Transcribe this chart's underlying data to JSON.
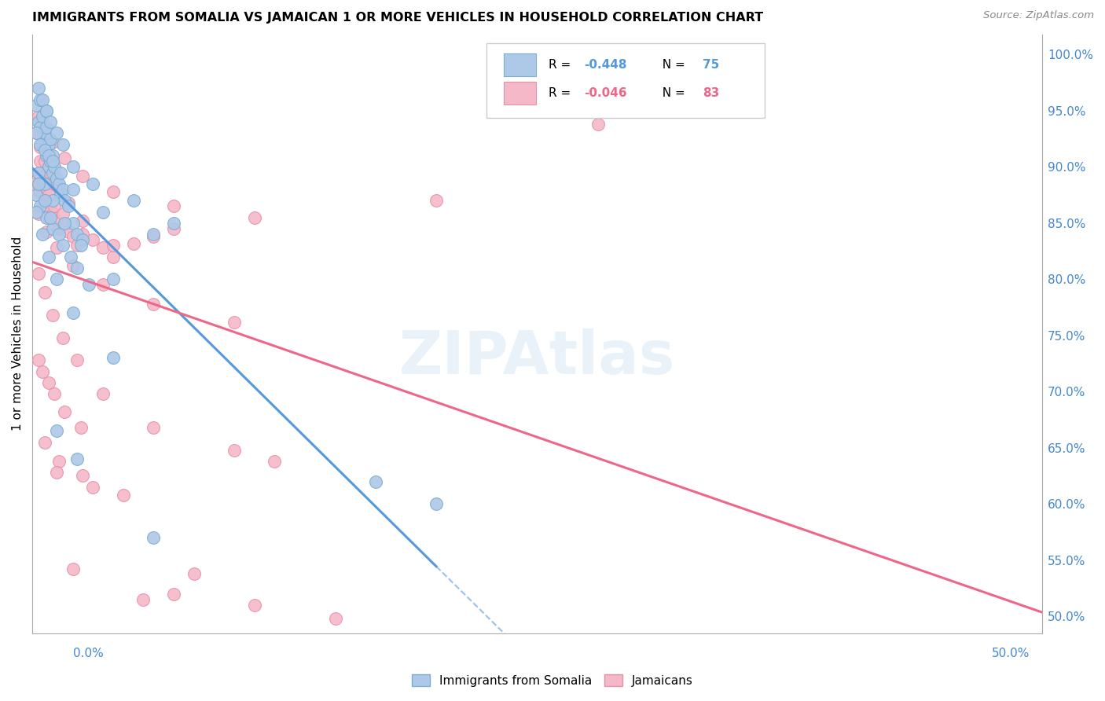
{
  "title": "IMMIGRANTS FROM SOMALIA VS JAMAICAN 1 OR MORE VEHICLES IN HOUSEHOLD CORRELATION CHART",
  "source": "Source: ZipAtlas.com",
  "ylabel": "1 or more Vehicles in Household",
  "ytick_labels": [
    "50.0%",
    "55.0%",
    "60.0%",
    "65.0%",
    "70.0%",
    "75.0%",
    "80.0%",
    "85.0%",
    "90.0%",
    "95.0%",
    "100.0%"
  ],
  "ytick_values": [
    0.5,
    0.55,
    0.6,
    0.65,
    0.7,
    0.75,
    0.8,
    0.85,
    0.9,
    0.95,
    1.0
  ],
  "xmin": 0.0,
  "xmax": 0.5,
  "ymin": 0.485,
  "ymax": 1.018,
  "somalia_color": "#aec8e8",
  "somalia_edge_color": "#7aadd4",
  "jamaican_color": "#f4b8c8",
  "jamaican_edge_color": "#e890a8",
  "somalia_R": -0.448,
  "somalia_N": 75,
  "jamaican_R": -0.046,
  "jamaican_N": 83,
  "regression_somalia_color": "#5599dd",
  "regression_jamaican_color": "#ee6688",
  "marker_size": 130,
  "somalia_x": [
    0.002,
    0.003,
    0.004,
    0.004,
    0.005,
    0.005,
    0.006,
    0.006,
    0.007,
    0.007,
    0.007,
    0.008,
    0.008,
    0.009,
    0.009,
    0.01,
    0.01,
    0.011,
    0.012,
    0.013,
    0.014,
    0.015,
    0.016,
    0.018,
    0.02,
    0.022,
    0.025,
    0.003,
    0.005,
    0.007,
    0.009,
    0.012,
    0.015,
    0.02,
    0.03,
    0.05,
    0.07,
    0.002,
    0.004,
    0.006,
    0.008,
    0.01,
    0.014,
    0.02,
    0.035,
    0.06,
    0.003,
    0.006,
    0.01,
    0.016,
    0.024,
    0.04,
    0.002,
    0.004,
    0.007,
    0.01,
    0.015,
    0.022,
    0.003,
    0.006,
    0.009,
    0.013,
    0.019,
    0.028,
    0.002,
    0.005,
    0.008,
    0.012,
    0.02,
    0.04,
    0.17,
    0.2,
    0.012,
    0.022,
    0.06
  ],
  "somalia_y": [
    0.955,
    0.94,
    0.935,
    0.96,
    0.92,
    0.945,
    0.925,
    0.93,
    0.91,
    0.935,
    0.95,
    0.9,
    0.92,
    0.905,
    0.925,
    0.91,
    0.895,
    0.9,
    0.89,
    0.885,
    0.875,
    0.88,
    0.87,
    0.865,
    0.85,
    0.84,
    0.835,
    0.97,
    0.96,
    0.95,
    0.94,
    0.93,
    0.92,
    0.9,
    0.885,
    0.87,
    0.85,
    0.93,
    0.92,
    0.915,
    0.91,
    0.905,
    0.895,
    0.88,
    0.86,
    0.84,
    0.895,
    0.885,
    0.87,
    0.85,
    0.83,
    0.8,
    0.875,
    0.865,
    0.855,
    0.845,
    0.83,
    0.81,
    0.885,
    0.87,
    0.855,
    0.84,
    0.82,
    0.795,
    0.86,
    0.84,
    0.82,
    0.8,
    0.77,
    0.73,
    0.62,
    0.6,
    0.665,
    0.64,
    0.57
  ],
  "jamaican_x": [
    0.001,
    0.002,
    0.003,
    0.003,
    0.004,
    0.004,
    0.005,
    0.005,
    0.006,
    0.006,
    0.007,
    0.007,
    0.008,
    0.008,
    0.009,
    0.01,
    0.011,
    0.012,
    0.013,
    0.015,
    0.016,
    0.018,
    0.02,
    0.022,
    0.025,
    0.03,
    0.035,
    0.04,
    0.05,
    0.06,
    0.07,
    0.002,
    0.004,
    0.006,
    0.009,
    0.013,
    0.018,
    0.025,
    0.04,
    0.28,
    0.003,
    0.005,
    0.008,
    0.011,
    0.016,
    0.024,
    0.003,
    0.006,
    0.01,
    0.015,
    0.022,
    0.035,
    0.06,
    0.1,
    0.12,
    0.003,
    0.006,
    0.01,
    0.016,
    0.025,
    0.04,
    0.07,
    0.11,
    0.003,
    0.007,
    0.012,
    0.02,
    0.035,
    0.06,
    0.1,
    0.045,
    0.07,
    0.013,
    0.025,
    0.055,
    0.11,
    0.2,
    0.012,
    0.03,
    0.08,
    0.15,
    0.006,
    0.02
  ],
  "jamaican_y": [
    0.885,
    0.88,
    0.885,
    0.895,
    0.878,
    0.905,
    0.865,
    0.885,
    0.872,
    0.892,
    0.86,
    0.882,
    0.855,
    0.875,
    0.862,
    0.858,
    0.865,
    0.852,
    0.845,
    0.858,
    0.848,
    0.842,
    0.838,
    0.83,
    0.84,
    0.835,
    0.828,
    0.82,
    0.832,
    0.838,
    0.845,
    0.93,
    0.918,
    0.905,
    0.895,
    0.882,
    0.868,
    0.852,
    0.83,
    0.938,
    0.728,
    0.718,
    0.708,
    0.698,
    0.682,
    0.668,
    0.805,
    0.788,
    0.768,
    0.748,
    0.728,
    0.698,
    0.668,
    0.648,
    0.638,
    0.945,
    0.935,
    0.922,
    0.908,
    0.892,
    0.878,
    0.865,
    0.855,
    0.858,
    0.842,
    0.828,
    0.812,
    0.795,
    0.778,
    0.762,
    0.608,
    0.52,
    0.638,
    0.625,
    0.515,
    0.51,
    0.87,
    0.628,
    0.615,
    0.538,
    0.498,
    0.655,
    0.542
  ]
}
